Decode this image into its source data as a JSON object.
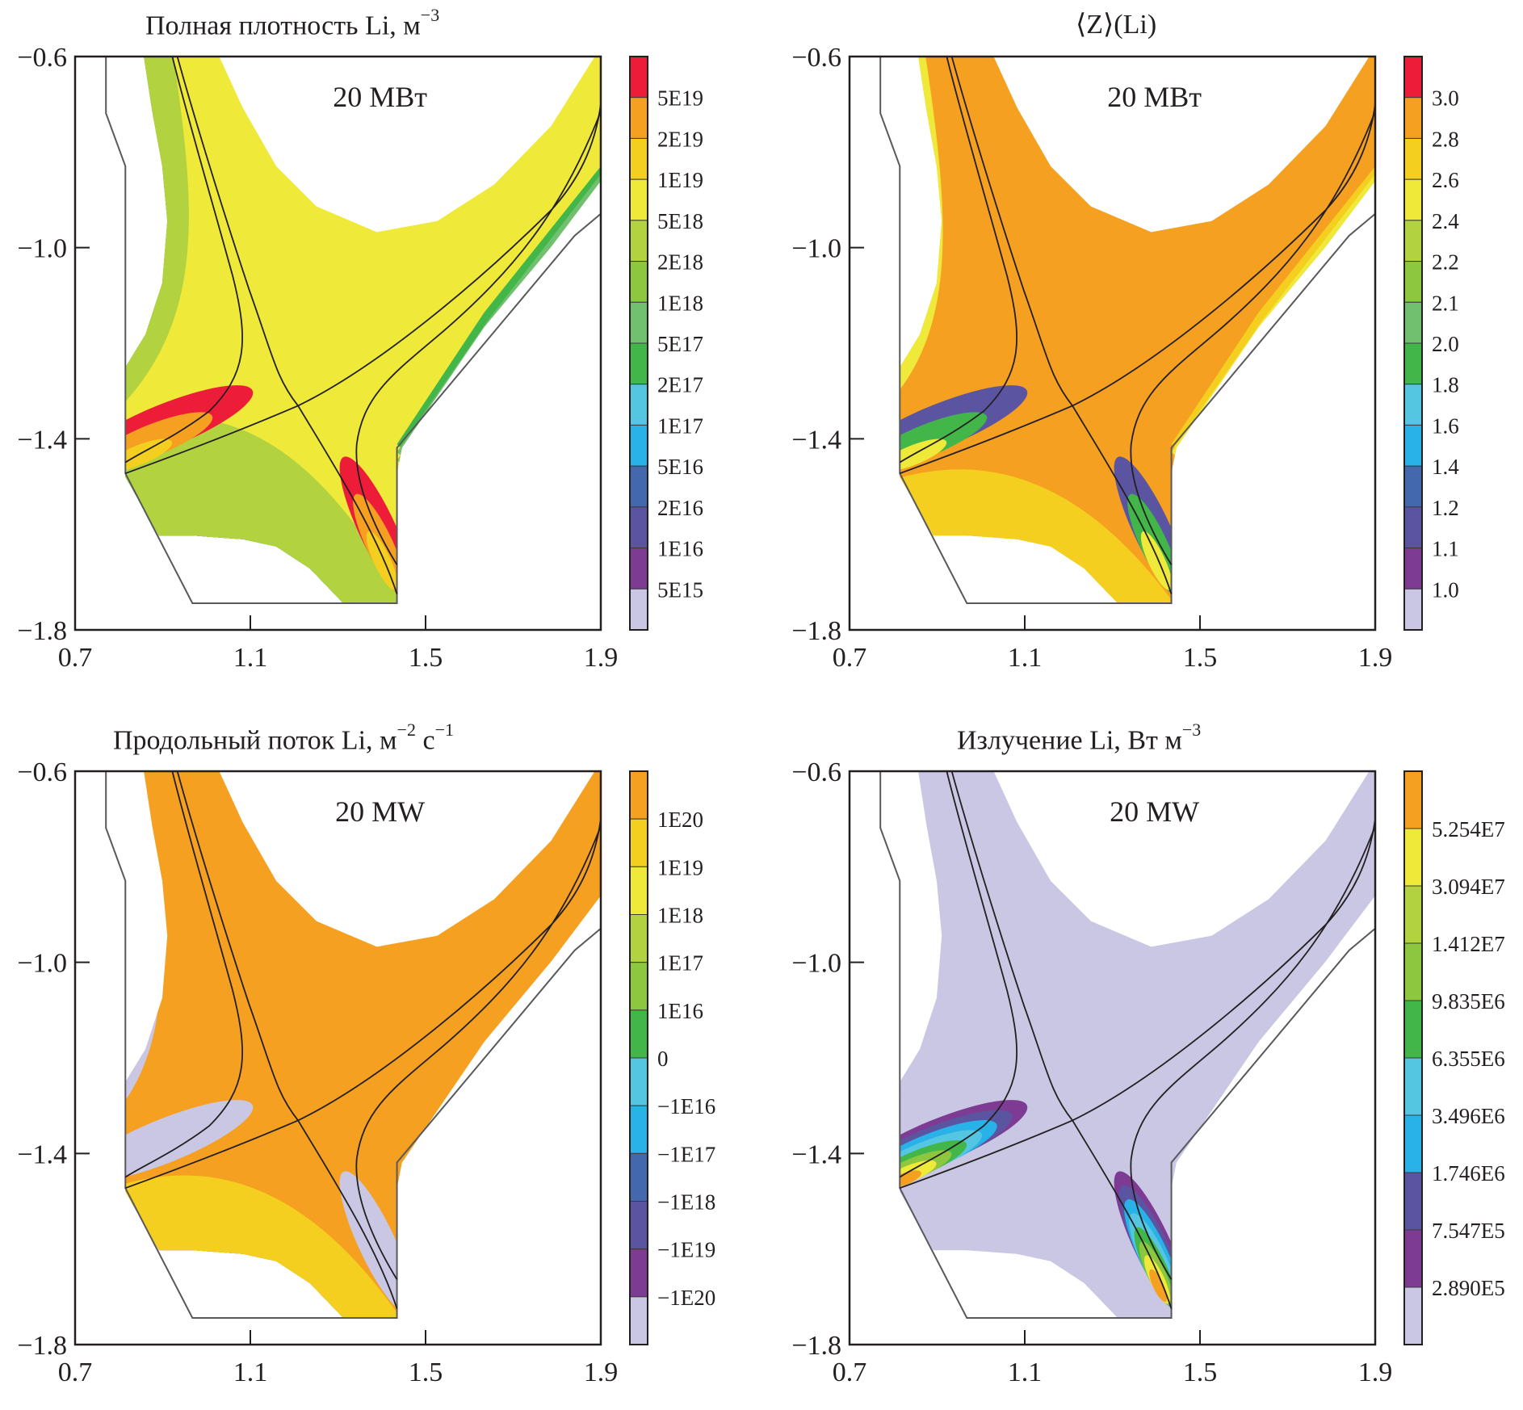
{
  "chart_data": [
    {
      "type": "heatmap",
      "id": "density",
      "title": "Полная плотность Li, м",
      "title_sup": "−3",
      "annotation": "20 МВт",
      "xlim": [
        0.7,
        1.9
      ],
      "ylim": [
        -1.8,
        -0.6
      ],
      "xticks": [
        "0.7",
        "1.1",
        "1.5",
        "1.9"
      ],
      "yticks": [
        "−0.6",
        "−1.0",
        "−1.4",
        "−1.8"
      ],
      "colorbar": {
        "colors": [
          "#ed1c39",
          "#f6a021",
          "#f5cf1f",
          "#efe93a",
          "#b3d23f",
          "#8dc63f",
          "#71c06f",
          "#42b649",
          "#55c6e2",
          "#28b2e8",
          "#4468ae",
          "#5b55a1",
          "#7e3b93",
          "#c9c7e4"
        ],
        "labels": [
          "5E19",
          "2E19",
          "1E19",
          "5E18",
          "2E18",
          "1E18",
          "5E17",
          "2E17",
          "1E17",
          "5E16",
          "2E16",
          "1E16",
          "5E15"
        ]
      },
      "regions": {
        "bulk": "#efe93a",
        "outer_left": [
          "#55c6e2",
          "#42b649",
          "#71c06f",
          "#8dc63f",
          "#b3d23f"
        ],
        "private": [
          "#7e3b93",
          "#5b55a1",
          "#4468ae",
          "#28b2e8",
          "#55c6e2",
          "#42b649",
          "#71c06f",
          "#8dc63f",
          "#b3d23f"
        ],
        "outer_right": [
          "#42b649",
          "#71c06f",
          "#8dc63f",
          "#b3d23f"
        ],
        "hot": [
          "#ed1c39",
          "#f6a021",
          "#f5cf1f"
        ]
      }
    },
    {
      "type": "heatmap",
      "id": "mean-charge",
      "title": "⟨Z⟩(Li)",
      "title_sup": "",
      "annotation": "20 МВт",
      "xlim": [
        0.7,
        1.9
      ],
      "ylim": [
        -1.8,
        -0.6
      ],
      "xticks": [
        "0.7",
        "1.1",
        "1.5",
        "1.9"
      ],
      "yticks": [
        "−0.6",
        "−1.0",
        "−1.4",
        "−1.8"
      ],
      "colorbar": {
        "colors": [
          "#ed1c39",
          "#f6a021",
          "#f5cf1f",
          "#efe93a",
          "#b3d23f",
          "#8dc63f",
          "#71c06f",
          "#42b649",
          "#55c6e2",
          "#28b2e8",
          "#4468ae",
          "#5b55a1",
          "#7e3b93",
          "#c9c7e4"
        ],
        "labels": [
          "3.0",
          "2.8",
          "2.6",
          "2.4",
          "2.2",
          "2.1",
          "2.0",
          "1.8",
          "1.6",
          "1.4",
          "1.2",
          "1.1",
          "1.0"
        ]
      },
      "regions": {
        "bulk": "#f6a021",
        "outer_left": [
          "#f5cf1f",
          "#efe93a"
        ],
        "private": [
          "#b3d23f",
          "#efe93a",
          "#f5cf1f"
        ],
        "outer_right": [
          "#f5cf1f",
          "#efe93a"
        ],
        "hot": [
          "#5b55a1",
          "#42b649",
          "#efe93a"
        ]
      }
    },
    {
      "type": "heatmap",
      "id": "parallel-flux",
      "title": "Продольный поток Li, м",
      "title_sup": "−2",
      "title_mid": " с",
      "title_sup2": "−1",
      "annotation": "20 MW",
      "xlim": [
        0.7,
        1.9
      ],
      "ylim": [
        -1.8,
        -0.6
      ],
      "xticks": [
        "0.7",
        "1.1",
        "1.5",
        "1.9"
      ],
      "yticks": [
        "−0.6",
        "−1.0",
        "−1.4",
        "−1.8"
      ],
      "colorbar": {
        "colors": [
          "#f6a021",
          "#f5cf1f",
          "#efe93a",
          "#b3d23f",
          "#8dc63f",
          "#42b649",
          "#55c6e2",
          "#28b2e8",
          "#4468ae",
          "#5b55a1",
          "#7e3b93",
          "#c9c7e4"
        ],
        "labels": [
          "1E20",
          "1E19",
          "1E18",
          "1E17",
          "1E16",
          "0",
          "−1E16",
          "−1E17",
          "−1E18",
          "−1E19",
          "−1E20"
        ]
      },
      "regions": {
        "bulk": "#f6a021",
        "outer_left": [
          "#c9c7e4"
        ],
        "private": [
          "#5b55a1",
          "#7e3b93",
          "#efe93a",
          "#f5cf1f"
        ],
        "outer_right": [
          "#f6a021"
        ],
        "hot": [
          "#c9c7e4"
        ]
      }
    },
    {
      "type": "heatmap",
      "id": "radiation",
      "title": "Излучение Li, Вт м",
      "title_sup": "−3",
      "annotation": "20 MW",
      "xlim": [
        0.7,
        1.9
      ],
      "ylim": [
        -1.8,
        -0.6
      ],
      "xticks": [
        "0.7",
        "1.1",
        "1.5",
        "1.9"
      ],
      "yticks": [
        "−0.6",
        "−1.0",
        "−1.4",
        "−1.8"
      ],
      "colorbar": {
        "colors": [
          "#f6a021",
          "#efe93a",
          "#b3d23f",
          "#8dc63f",
          "#42b649",
          "#55c6e2",
          "#28b2e8",
          "#5b55a1",
          "#7e3b93",
          "#c9c7e4"
        ],
        "labels": [
          "5.254E7",
          "3.094E7",
          "1.412E7",
          "9.835E6",
          "6.355E6",
          "3.496E6",
          "1.746E6",
          "7.547E5",
          "2.890E5"
        ]
      },
      "regions": {
        "bulk": "#c9c7e4",
        "outer_left": [
          "#c9c7e4"
        ],
        "private": [
          "#c9c7e4"
        ],
        "outer_right": [
          "#c9c7e4"
        ],
        "hot": [
          "#7e3b93",
          "#5b55a1",
          "#28b2e8",
          "#55c6e2",
          "#42b649",
          "#8dc63f",
          "#efe93a",
          "#f6a021"
        ]
      }
    }
  ]
}
